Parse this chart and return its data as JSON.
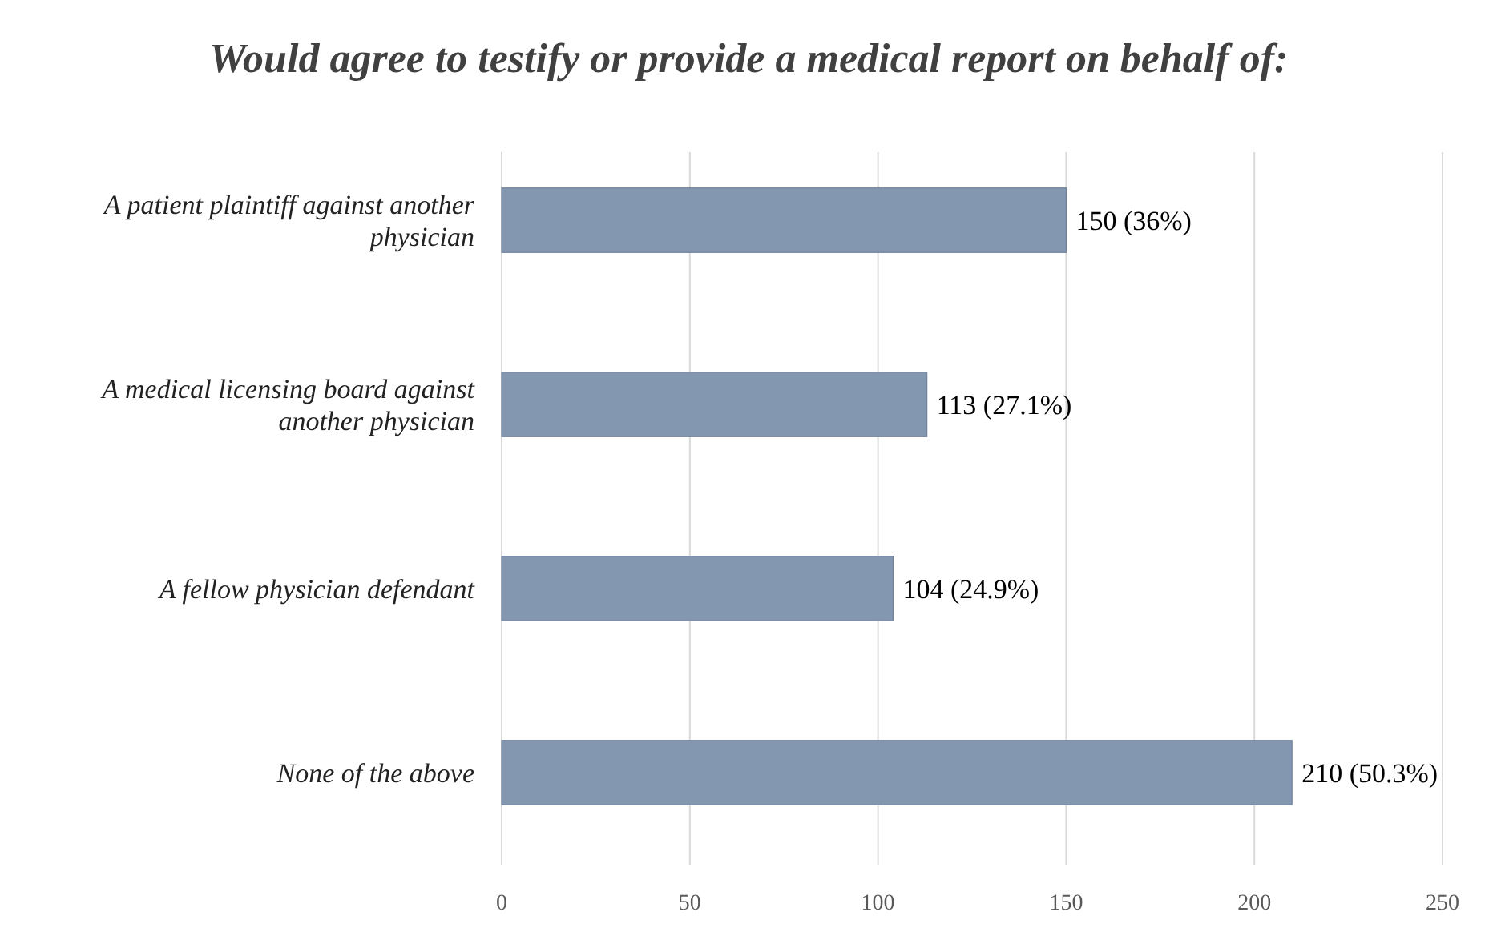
{
  "chart_data": {
    "type": "bar",
    "orientation": "horizontal",
    "title": "Would agree to testify or provide a medical report on behalf of:",
    "categories": [
      "A patient plaintiff against another physician",
      "A medical licensing board against another physician",
      "A fellow physician defendant",
      "None of the above"
    ],
    "values": [
      150,
      113,
      104,
      210
    ],
    "color": "#8497b0",
    "value_labels": [
      "150 (36%)",
      "113 (27.1%)",
      "104 (24.9%)",
      "210 (50.3%)"
    ],
    "xlim": [
      0,
      250
    ],
    "xticks": [
      0,
      50,
      100,
      150,
      200,
      250
    ],
    "grid": "x"
  }
}
